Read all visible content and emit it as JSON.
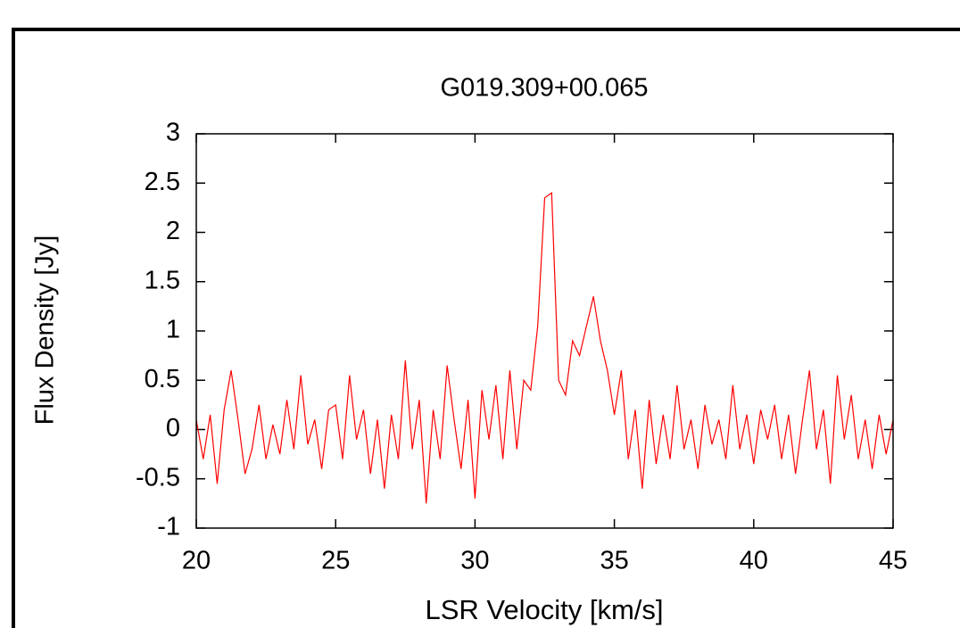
{
  "chart_data": {
    "type": "line",
    "title": "G019.309+00.065",
    "x_label": "LSR Velocity [km/s]",
    "y_label": "Flux Density [Jy]",
    "x": [
      20,
      20.25,
      20.5,
      20.75,
      21,
      21.25,
      21.5,
      21.75,
      22,
      22.25,
      22.5,
      22.75,
      23,
      23.25,
      23.5,
      23.75,
      24,
      24.25,
      24.5,
      24.75,
      25,
      25.25,
      25.5,
      25.75,
      26,
      26.25,
      26.5,
      26.75,
      27,
      27.25,
      27.5,
      27.75,
      28,
      28.25,
      28.5,
      28.75,
      29,
      29.25,
      29.5,
      29.75,
      30,
      30.25,
      30.5,
      30.75,
      31,
      31.25,
      31.5,
      31.75,
      32,
      32.25,
      32.5,
      32.75,
      33,
      33.25,
      33.5,
      33.75,
      34,
      34.25,
      34.5,
      34.75,
      35,
      35.25,
      35.5,
      35.75,
      36,
      36.25,
      36.5,
      36.75,
      37,
      37.25,
      37.5,
      37.75,
      38,
      38.25,
      38.5,
      38.75,
      39,
      39.25,
      39.5,
      39.75,
      40,
      40.25,
      40.5,
      40.75,
      41,
      41.25,
      41.5,
      41.75,
      42,
      42.25,
      42.5,
      42.75,
      43,
      43.25,
      43.5,
      43.75,
      44,
      44.25,
      44.5,
      44.75,
      45
    ],
    "series": [
      {
        "color": "#ff0000",
        "values": [
          0.1,
          -0.3,
          0.15,
          -0.55,
          0.2,
          0.6,
          0.1,
          -0.45,
          -0.2,
          0.25,
          -0.3,
          0.05,
          -0.25,
          0.3,
          -0.2,
          0.55,
          -0.15,
          0.1,
          -0.4,
          0.2,
          0.25,
          -0.3,
          0.55,
          -0.1,
          0.2,
          -0.45,
          0.1,
          -0.6,
          0.15,
          -0.3,
          0.7,
          -0.2,
          0.3,
          -0.75,
          0.2,
          -0.3,
          0.65,
          0.1,
          -0.4,
          0.3,
          -0.7,
          0.4,
          -0.1,
          0.45,
          -0.3,
          0.6,
          -0.2,
          0.5,
          0.4,
          1.05,
          2.35,
          2.4,
          0.5,
          0.35,
          0.9,
          0.75,
          1.05,
          1.35,
          0.9,
          0.6,
          0.15,
          0.6,
          -0.3,
          0.2,
          -0.6,
          0.3,
          -0.35,
          0.15,
          -0.3,
          0.45,
          -0.2,
          0.1,
          -0.4,
          0.25,
          -0.15,
          0.1,
          -0.3,
          0.45,
          -0.2,
          0.15,
          -0.35,
          0.2,
          -0.1,
          0.25,
          -0.3,
          0.15,
          -0.45,
          0.1,
          0.6,
          -0.2,
          0.2,
          -0.55,
          0.55,
          -0.1,
          0.35,
          -0.3,
          0.1,
          -0.4,
          0.15,
          -0.25,
          0.1
        ]
      }
    ],
    "xlim": [
      20,
      45
    ],
    "xticks": [
      20,
      25,
      30,
      35,
      40,
      45
    ],
    "ylim": [
      -1,
      3
    ],
    "yticks": [
      -1,
      -0.5,
      0,
      0.5,
      1,
      1.5,
      2,
      2.5,
      3
    ]
  }
}
